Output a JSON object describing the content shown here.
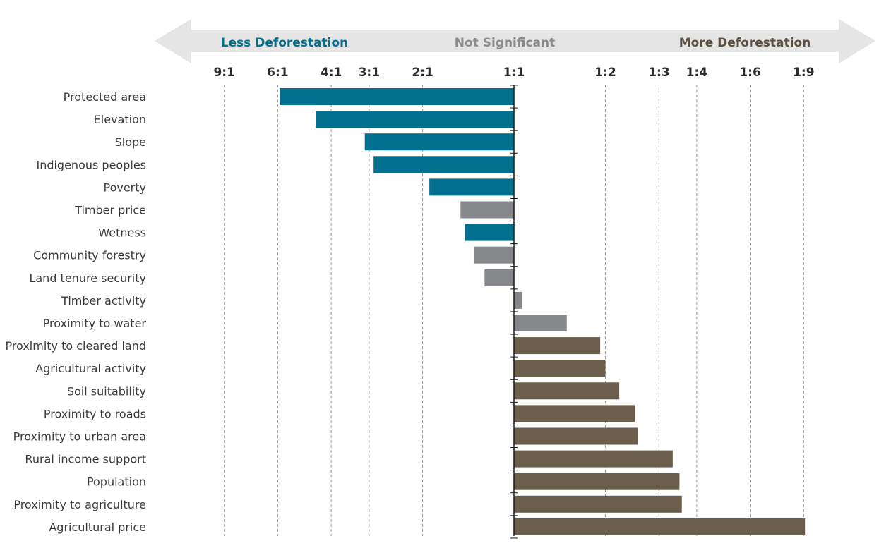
{
  "chart_data": {
    "type": "bar",
    "orientation": "horizontal",
    "banner": {
      "left": "Less Deforestation",
      "center": "Not Significant",
      "right": "More Deforestation"
    },
    "x_ticks": [
      "9:1",
      "6:1",
      "4:1",
      "3:1",
      "2:1",
      "1:1",
      "1:2",
      "1:3",
      "1:4",
      "1:6",
      "1:9"
    ],
    "x_tick_values": [
      9,
      6,
      4,
      3,
      2,
      1,
      0.5,
      0.333,
      0.25,
      0.1667,
      0.1111
    ],
    "x_scale": "log",
    "grid": true,
    "categories": [
      "Protected area",
      "Elevation",
      "Slope",
      "Indigenous peoples",
      "Poverty",
      "Timber price",
      "Wetness",
      "Community forestry",
      "Land tenure security",
      "Timber activity",
      "Proximity to water",
      "Proximity to cleared land",
      "Agricultural activity",
      "Soil suitability",
      "Proximity to roads",
      "Proximity to urban area",
      "Rural income support",
      "Population",
      "Proximity to agriculture",
      "Agricultural price"
    ],
    "values": [
      5.9,
      4.5,
      3.1,
      2.9,
      1.9,
      1.5,
      1.45,
      1.35,
      1.25,
      0.94,
      0.67,
      0.52,
      0.5,
      0.45,
      0.4,
      0.39,
      0.3,
      0.285,
      0.28,
      0.11
    ],
    "significance": [
      "less",
      "less",
      "less",
      "less",
      "less",
      "not",
      "less",
      "not",
      "not",
      "not",
      "not",
      "more",
      "more",
      "more",
      "more",
      "more",
      "more",
      "more",
      "more",
      "more"
    ],
    "colors": {
      "less": "#03708f",
      "not": "#87888c",
      "more": "#6b5e4a",
      "banner": "#e5e5e5",
      "less_text": "#03708f",
      "not_text": "#8b8b8b",
      "more_text": "#5c5140"
    }
  }
}
